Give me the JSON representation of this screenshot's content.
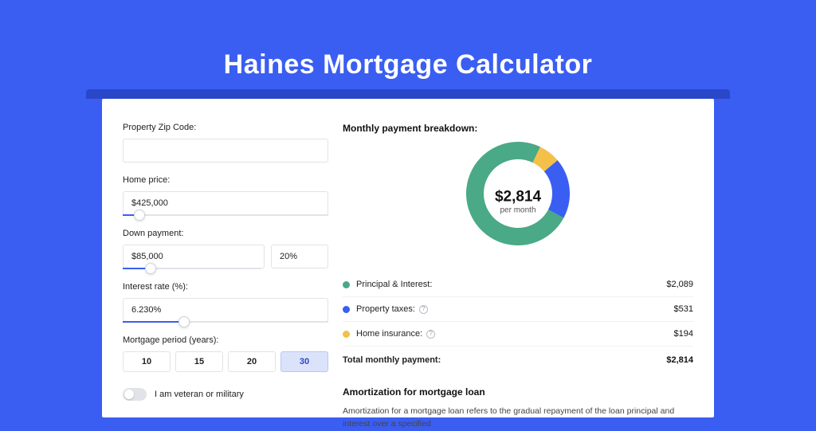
{
  "page": {
    "title": "Haines Mortgage Calculator",
    "bg_color": "#3a5ef2",
    "shadow_color": "#2a47c9"
  },
  "form": {
    "zip": {
      "label": "Property Zip Code:",
      "value": ""
    },
    "home_price": {
      "label": "Home price:",
      "value": "$425,000",
      "slider_pct": 8
    },
    "down_payment": {
      "label": "Down payment:",
      "value": "$85,000",
      "pct_value": "20%",
      "slider_pct": 20
    },
    "interest": {
      "label": "Interest rate (%):",
      "value": "6.230%",
      "slider_pct": 30
    },
    "term": {
      "label": "Mortgage period (years):",
      "options": [
        "10",
        "15",
        "20",
        "30"
      ],
      "selected_index": 3
    },
    "veteran": {
      "label": "I am veteran or military",
      "on": false
    }
  },
  "breakdown": {
    "title": "Monthly payment breakdown:",
    "donut": {
      "amount": "$2,814",
      "sub": "per month",
      "size": 130,
      "thickness": 22,
      "slices": [
        {
          "color": "#4aa986",
          "value": 74.2
        },
        {
          "color": "#3a5ef2",
          "value": 18.9
        },
        {
          "color": "#f3c04a",
          "value": 6.9
        }
      ]
    },
    "rows": [
      {
        "dot": "#4aa986",
        "label": "Principal & Interest:",
        "info": false,
        "val": "$2,089"
      },
      {
        "dot": "#3a5ef2",
        "label": "Property taxes:",
        "info": true,
        "val": "$531"
      },
      {
        "dot": "#f3c04a",
        "label": "Home insurance:",
        "info": true,
        "val": "$194"
      }
    ],
    "total": {
      "label": "Total monthly payment:",
      "val": "$2,814"
    }
  },
  "amort": {
    "title": "Amortization for mortgage loan",
    "body": "Amortization for a mortgage loan refers to the gradual repayment of the loan principal and interest over a specified"
  }
}
